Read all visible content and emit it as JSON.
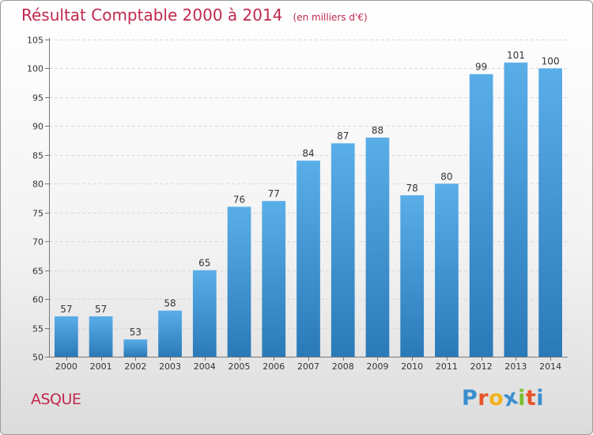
{
  "chart_data": {
    "type": "bar",
    "title": "Résultat Comptable 2000 à 2014",
    "subtitle": "(en milliers d'€)",
    "categories": [
      "2000",
      "2001",
      "2002",
      "2003",
      "2004",
      "2005",
      "2006",
      "2007",
      "2008",
      "2009",
      "2010",
      "2011",
      "2012",
      "2013",
      "2014"
    ],
    "values": [
      57,
      57,
      53,
      58,
      65,
      76,
      77,
      84,
      87,
      88,
      78,
      80,
      99,
      101,
      100
    ],
    "ylim": [
      50,
      105
    ],
    "yticks": [
      50,
      55,
      60,
      65,
      70,
      75,
      80,
      85,
      90,
      95,
      100,
      105
    ],
    "grid": true,
    "bar_color_top": "#5aaee8",
    "bar_color_bottom": "#2a7ab8"
  },
  "footer": {
    "commune": "ASQUE",
    "logo_letters": [
      {
        "char": "P",
        "color": "#3a8fd0"
      },
      {
        "char": "r",
        "color": "#e8532a"
      },
      {
        "char": "o",
        "color": "#f2b21b"
      },
      {
        "char": "x",
        "color": "#3a8fd0"
      },
      {
        "char": "i",
        "color": "#7bbf2e"
      },
      {
        "char": "t",
        "color": "#e8532a"
      },
      {
        "char": "i",
        "color": "#3a8fd0"
      }
    ]
  }
}
